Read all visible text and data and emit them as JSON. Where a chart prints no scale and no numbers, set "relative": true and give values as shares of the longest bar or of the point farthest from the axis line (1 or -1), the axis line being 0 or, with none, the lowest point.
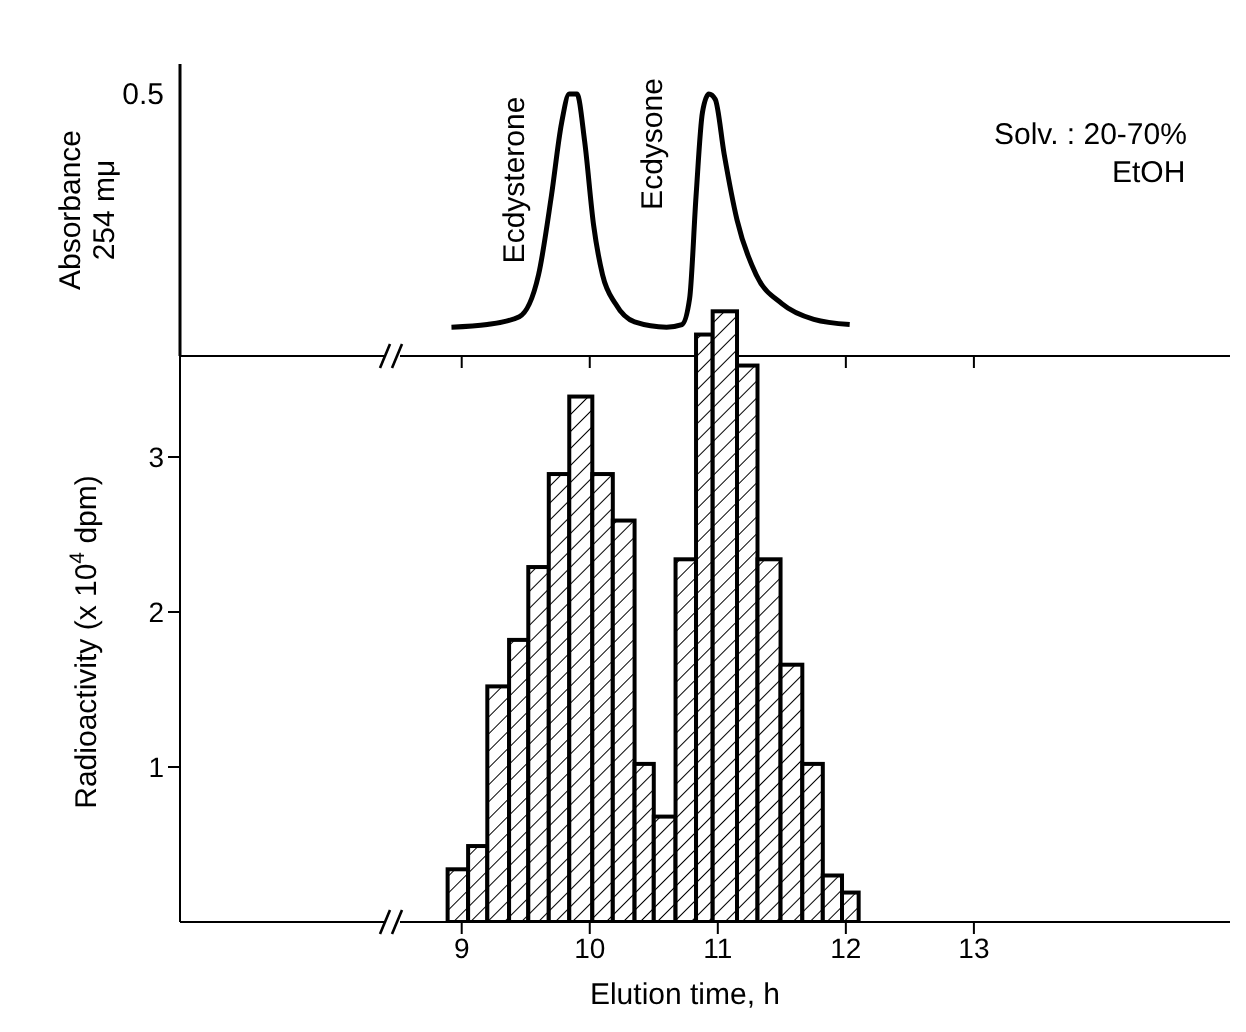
{
  "chart_data": [
    {
      "type": "line",
      "ylabel": "Absorbance\n254 mμ",
      "relative": true,
      "x": [
        8.92,
        9.2,
        9.45,
        9.6,
        9.7,
        9.78,
        9.84,
        9.9,
        9.96,
        10.03,
        10.1,
        10.2,
        10.35,
        10.6,
        10.72,
        10.78,
        10.83,
        10.88,
        10.93,
        10.98,
        11.05,
        11.15,
        11.3,
        11.5,
        11.75,
        12.03
      ],
      "values": [
        0.11,
        0.12,
        0.15,
        0.31,
        0.61,
        0.89,
        1,
        1,
        0.82,
        0.5,
        0.31,
        0.2,
        0.13,
        0.11,
        0.12,
        0.22,
        0.61,
        0.93,
        1,
        0.98,
        0.77,
        0.52,
        0.31,
        0.2,
        0.14,
        0.12
      ],
      "color": "#000000",
      "marker": "none",
      "xlim": [
        6.8,
        15
      ],
      "xticks": [
        9,
        10,
        11,
        12,
        13
      ],
      "tick_labels": false,
      "annotations": [
        "Ecdysterone",
        "Ecdysone",
        "Solv. : 20-70%\nEtOH",
        "0.5"
      ]
    },
    {
      "type": "histogram",
      "xlabel": "Elution time, h",
      "ylabel": "Radioactivity (x 10$^{4}$ dpm)",
      "bins": [
        8.89,
        9.05,
        9.2,
        9.37,
        9.52,
        9.68,
        9.84,
        10.02,
        10.18,
        10.35,
        10.5,
        10.67,
        10.83,
        10.96,
        11.15,
        11.31,
        11.49,
        11.66,
        11.82,
        11.97,
        12.1
      ],
      "values": [
        0.34,
        0.49,
        1.52,
        1.82,
        2.29,
        2.89,
        3.39,
        2.89,
        2.59,
        1.02,
        0.68,
        2.34,
        3.79,
        3.94,
        3.59,
        2.34,
        1.66,
        1.02,
        0.3,
        0.19
      ],
      "color": "#000000",
      "xlim": [
        6.8,
        15
      ],
      "xticks": [
        9,
        10,
        11,
        12,
        13
      ],
      "ylim": [
        0,
        4
      ],
      "yticks": [
        1,
        2,
        3
      ]
    }
  ]
}
